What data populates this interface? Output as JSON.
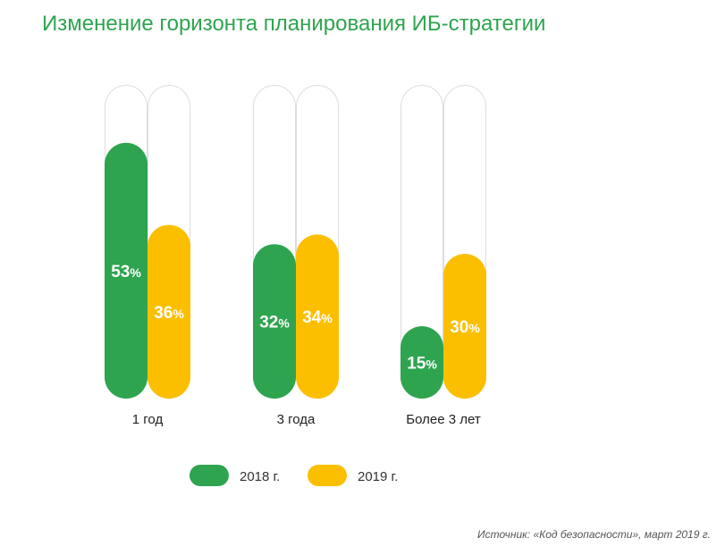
{
  "chart_data": {
    "type": "bar",
    "title": "Изменение горизонта планирования ИБ-стратегии",
    "categories": [
      "1 год",
      "3 года",
      "Более 3 лет"
    ],
    "series": [
      {
        "name": "2018 г.",
        "color": "#2ea44f",
        "values": [
          53,
          32,
          15
        ]
      },
      {
        "name": "2019 г.",
        "color": "#fbbf00",
        "values": [
          36,
          34,
          30
        ]
      }
    ],
    "value_suffix": "%",
    "ylim": [
      0,
      65
    ],
    "grid": false,
    "legend_position": "bottom-center",
    "track_color": "#dddddd",
    "label_color": "#ffffff"
  },
  "source": "Источник: «Код безопасности», март 2019 г."
}
